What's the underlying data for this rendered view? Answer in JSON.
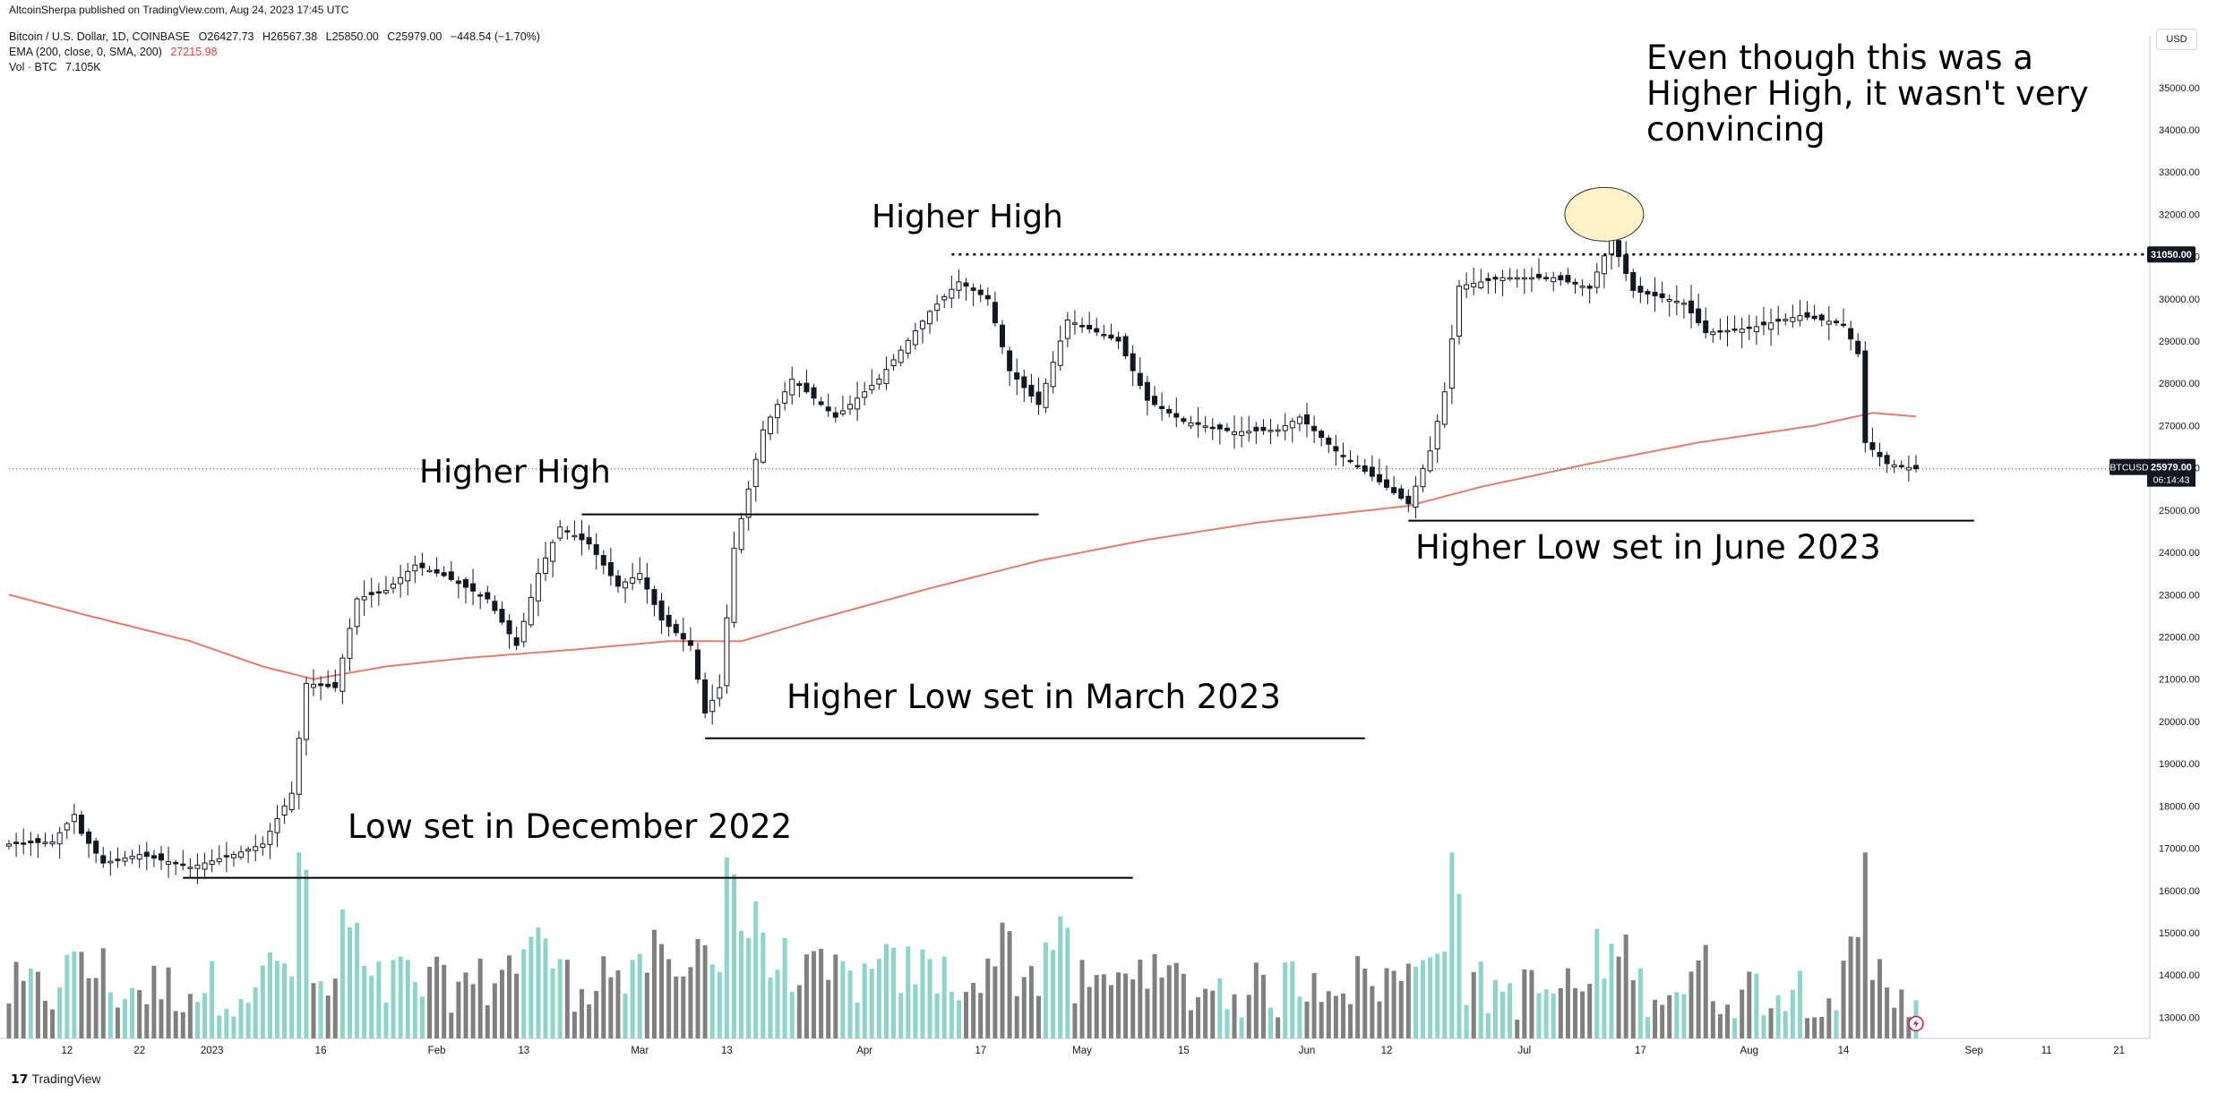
{
  "header": {
    "publisher": "AltcoinSherpa published on TradingView.com, Aug 24, 2023 17:45 UTC",
    "symbol": "Bitcoin / U.S. Dollar, 1D, COINBASE",
    "ohlc": {
      "o": "O26427.73",
      "h": "H26567.38",
      "l": "L25850.00",
      "c": "C25979.00",
      "chg": "−448.54 (−1.70%)"
    },
    "ema_label": "EMA (200, close, 0, SMA, 200)",
    "ema_value": "27215.98",
    "vol_label": "Vol · BTC",
    "vol_value": "7.105K"
  },
  "footer": {
    "brand": "TradingView"
  },
  "unit_button": "USD",
  "annotations": {
    "hh2_note": [
      "Even though this was a",
      "Higher High, it wasn't very",
      "convincing"
    ],
    "higher_high_1": "Higher High",
    "higher_high_2": "Higher High",
    "low_dec": "Low set in December 2022",
    "hl_march": "Higher Low set in March 2023",
    "hl_june": "Higher Low set in June 2023"
  },
  "price_tags": {
    "level": "31050.00",
    "symbol": "BTCUSD",
    "last": "25979.00",
    "countdown": "06:14:43"
  },
  "colors": {
    "up": "#ffffff",
    "down": "#131722",
    "ema": "#e57b6e",
    "vol_up": "#8fd3c9",
    "vol_down": "#808080",
    "highlight": "#fdf2c8"
  },
  "chart_data": {
    "type": "candlestick",
    "y_axis": {
      "min": 12500,
      "max": 35800,
      "ticks": [
        13000,
        14000,
        15000,
        16000,
        17000,
        18000,
        19000,
        20000,
        21000,
        22000,
        23000,
        24000,
        25000,
        26000,
        27000,
        28000,
        29000,
        30000,
        31000,
        32000,
        33000,
        34000,
        35000
      ]
    },
    "x_axis": {
      "start_date": "2022-12-04",
      "end_date": "2023-09-25",
      "ticks": [
        {
          "label": "12",
          "date": "2022-12-12"
        },
        {
          "label": "22",
          "date": "2022-12-22"
        },
        {
          "label": "2023",
          "date": "2023-01-01"
        },
        {
          "label": "16",
          "date": "2023-01-16"
        },
        {
          "label": "Feb",
          "date": "2023-02-01"
        },
        {
          "label": "13",
          "date": "2023-02-13"
        },
        {
          "label": "Mar",
          "date": "2023-03-01"
        },
        {
          "label": "13",
          "date": "2023-03-13"
        },
        {
          "label": "Apr",
          "date": "2023-04-01"
        },
        {
          "label": "17",
          "date": "2023-04-17"
        },
        {
          "label": "May",
          "date": "2023-05-01"
        },
        {
          "label": "15",
          "date": "2023-05-15"
        },
        {
          "label": "Jun",
          "date": "2023-06-01"
        },
        {
          "label": "12",
          "date": "2023-06-12"
        },
        {
          "label": "Jul",
          "date": "2023-07-01"
        },
        {
          "label": "17",
          "date": "2023-07-17"
        },
        {
          "label": "Aug",
          "date": "2023-08-01"
        },
        {
          "label": "14",
          "date": "2023-08-14"
        },
        {
          "label": "Sep",
          "date": "2023-09-01"
        },
        {
          "label": "11",
          "date": "2023-09-11"
        },
        {
          "label": "21",
          "date": "2023-09-21"
        }
      ]
    },
    "close_anchors": [
      [
        "2022-12-04",
        17100
      ],
      [
        "2022-12-10",
        17150
      ],
      [
        "2022-12-13",
        17800
      ],
      [
        "2022-12-14",
        17350
      ],
      [
        "2022-12-17",
        16650
      ],
      [
        "2022-12-22",
        16850
      ],
      [
        "2022-12-29",
        16550
      ],
      [
        "2023-01-04",
        16850
      ],
      [
        "2023-01-08",
        17100
      ],
      [
        "2023-01-12",
        18300
      ],
      [
        "2023-01-14",
        20900
      ],
      [
        "2023-01-18",
        20800
      ],
      [
        "2023-01-21",
        22900
      ],
      [
        "2023-01-25",
        23100
      ],
      [
        "2023-01-29",
        23700
      ],
      [
        "2023-02-02",
        23450
      ],
      [
        "2023-02-08",
        22900
      ],
      [
        "2023-02-12",
        21800
      ],
      [
        "2023-02-15",
        23500
      ],
      [
        "2023-02-18",
        24600
      ],
      [
        "2023-02-22",
        24200
      ],
      [
        "2023-02-26",
        23200
      ],
      [
        "2023-03-01",
        23500
      ],
      [
        "2023-03-04",
        22400
      ],
      [
        "2023-03-08",
        21800
      ],
      [
        "2023-03-10",
        20200
      ],
      [
        "2023-03-12",
        20800
      ],
      [
        "2023-03-14",
        24100
      ],
      [
        "2023-03-18",
        26900
      ],
      [
        "2023-03-22",
        28100
      ],
      [
        "2023-03-28",
        27200
      ],
      [
        "2023-04-03",
        28100
      ],
      [
        "2023-04-10",
        29700
      ],
      [
        "2023-04-14",
        30400
      ],
      [
        "2023-04-18",
        30000
      ],
      [
        "2023-04-21",
        28300
      ],
      [
        "2023-04-25",
        27500
      ],
      [
        "2023-04-29",
        29500
      ],
      [
        "2023-05-06",
        29000
      ],
      [
        "2023-05-10",
        27600
      ],
      [
        "2023-05-15",
        27100
      ],
      [
        "2023-05-22",
        26850
      ],
      [
        "2023-05-28",
        26900
      ],
      [
        "2023-05-31",
        27200
      ],
      [
        "2023-06-05",
        26400
      ],
      [
        "2023-06-10",
        25800
      ],
      [
        "2023-06-15",
        25150
      ],
      [
        "2023-06-18",
        26400
      ],
      [
        "2023-06-20",
        27800
      ],
      [
        "2023-06-22",
        30300
      ],
      [
        "2023-06-28",
        30500
      ],
      [
        "2023-07-05",
        30500
      ],
      [
        "2023-07-10",
        30250
      ],
      [
        "2023-07-13",
        31400
      ],
      [
        "2023-07-16",
        30200
      ],
      [
        "2023-07-23",
        29900
      ],
      [
        "2023-07-26",
        29200
      ],
      [
        "2023-08-01",
        29300
      ],
      [
        "2023-08-08",
        29600
      ],
      [
        "2023-08-14",
        29400
      ],
      [
        "2023-08-16",
        28700
      ],
      [
        "2023-08-17",
        26600
      ],
      [
        "2023-08-20",
        26100
      ],
      [
        "2023-08-24",
        25979
      ]
    ],
    "ema_anchors": [
      [
        "2022-12-04",
        23000
      ],
      [
        "2022-12-15",
        22500
      ],
      [
        "2022-12-29",
        21900
      ],
      [
        "2023-01-08",
        21300
      ],
      [
        "2023-01-15",
        21000
      ],
      [
        "2023-01-25",
        21300
      ],
      [
        "2023-02-05",
        21500
      ],
      [
        "2023-02-20",
        21700
      ],
      [
        "2023-03-05",
        21900
      ],
      [
        "2023-03-15",
        21900
      ],
      [
        "2023-03-25",
        22400
      ],
      [
        "2023-04-10",
        23150
      ],
      [
        "2023-04-25",
        23800
      ],
      [
        "2023-05-10",
        24300
      ],
      [
        "2023-05-25",
        24700
      ],
      [
        "2023-06-15",
        25100
      ],
      [
        "2023-06-25",
        25550
      ],
      [
        "2023-07-10",
        26100
      ],
      [
        "2023-07-25",
        26600
      ],
      [
        "2023-08-10",
        27000
      ],
      [
        "2023-08-18",
        27300
      ],
      [
        "2023-08-24",
        27215.98
      ]
    ],
    "levels": [
      {
        "value": 16300,
        "from": "2022-12-28",
        "to": "2023-05-08",
        "style": "solid"
      },
      {
        "value": 19600,
        "from": "2023-03-10",
        "to": "2023-06-09",
        "style": "solid"
      },
      {
        "value": 24900,
        "from": "2023-02-21",
        "to": "2023-04-25",
        "style": "solid"
      },
      {
        "value": 24750,
        "from": "2023-06-15",
        "to": "2023-09-01",
        "style": "solid"
      },
      {
        "value": 31050,
        "from": "2023-04-13",
        "to": "2023-09-25",
        "style": "dotted"
      }
    ],
    "last_price": 25979
  }
}
